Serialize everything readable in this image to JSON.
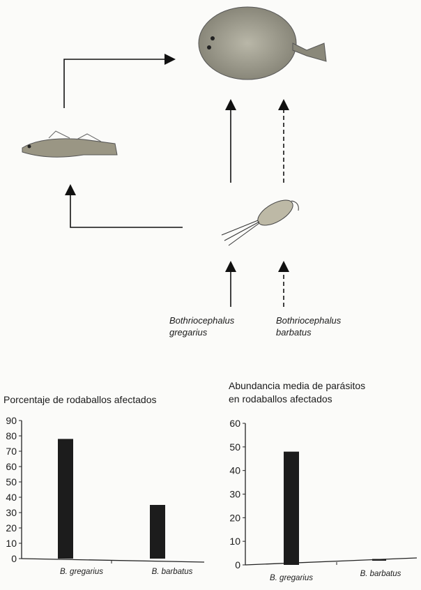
{
  "diagram": {
    "organisms": [
      {
        "id": "turbot",
        "icon": "flatfish-turbot"
      },
      {
        "id": "goby",
        "icon": "small-fish-goby"
      },
      {
        "id": "copepod",
        "icon": "copepod"
      }
    ],
    "parasites": [
      {
        "name": "Bothriocephalus gregarius",
        "line1": "Bothriocephalus",
        "line2": "gregarius",
        "path": "copepod → goby → turbot and copepod → turbot",
        "line_style": "solid"
      },
      {
        "name": "Bothriocephalus barbatus",
        "line1": "Bothriocephalus",
        "line2": "barbatus",
        "path": "copepod → turbot",
        "line_style": "dashed"
      }
    ]
  },
  "chart_data": [
    {
      "type": "bar",
      "title": "Porcentaje de rodaballos afectados",
      "categories": [
        "B. gregarius",
        "B. barbatus"
      ],
      "values": [
        78,
        35
      ],
      "ylim": [
        0,
        90
      ],
      "yticks": [
        0,
        10,
        20,
        30,
        40,
        50,
        60,
        70,
        80,
        90
      ],
      "xlabel": "",
      "ylabel": "",
      "bar_color": "#1c1c1c",
      "grid": false
    },
    {
      "type": "bar",
      "title": "Abundancia media de parásitos en rodaballos afectados",
      "title_lines": [
        "Abundancia media de parásitos",
        "en rodaballos afectados"
      ],
      "categories": [
        "B. gregarius",
        "B. barbatus"
      ],
      "values": [
        48,
        0.5
      ],
      "ylim": [
        0,
        60
      ],
      "yticks": [
        0,
        10,
        20,
        30,
        40,
        50,
        60
      ],
      "xlabel": "",
      "ylabel": "",
      "bar_color": "#1c1c1c",
      "grid": false
    }
  ]
}
